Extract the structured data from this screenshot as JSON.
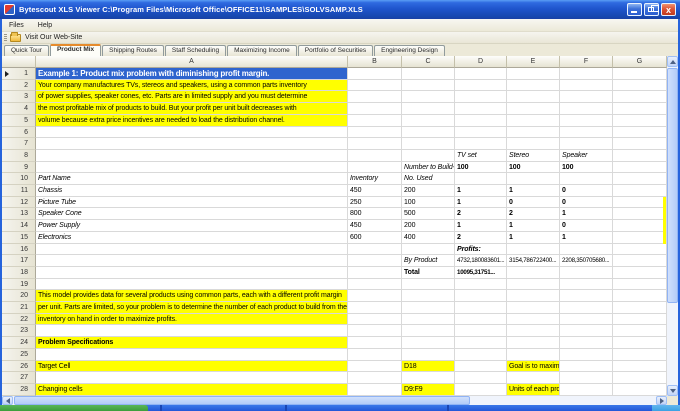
{
  "window": {
    "title": "Bytescout XLS Viewer C:\\Program Files\\Microsoft Office\\OFFICE11\\SAMPLES\\SOLVSAMP.XLS",
    "controls": {
      "minimize": "minimize",
      "restore": "restore",
      "close": "close"
    }
  },
  "menu": {
    "items": [
      "Files",
      "Help"
    ]
  },
  "toolbar": {
    "web_button_label": "Visit Our Web-Site"
  },
  "tabs": {
    "active_index": 1,
    "items": [
      "Quick Tour",
      "Product Mix",
      "Shipping Routes",
      "Staff Scheduling",
      "Maximizing Income",
      "Portfolio of Securities",
      "Engineering Design"
    ]
  },
  "grid": {
    "columns": [
      "A",
      "B",
      "C",
      "D",
      "E",
      "F",
      "G"
    ],
    "rows": [
      {
        "n": 1,
        "cells": [
          {
            "c": "A",
            "t": "Example 1:  Product mix problem with diminishing profit margin.",
            "s": "hdr",
            "bg": "bl"
          }
        ]
      },
      {
        "n": 2,
        "cells": [
          {
            "c": "A",
            "t": "Your company manufactures TVs, stereos and speakers, using a common parts inventory",
            "bg": "y"
          }
        ]
      },
      {
        "n": 3,
        "cells": [
          {
            "c": "A",
            "t": "of power supplies, speaker cones, etc.  Parts are in limited supply and you must determine",
            "bg": "y"
          }
        ]
      },
      {
        "n": 4,
        "cells": [
          {
            "c": "A",
            "t": "the most profitable mix of products to build. But your profit per unit built decreases with",
            "bg": "y"
          }
        ]
      },
      {
        "n": 5,
        "cells": [
          {
            "c": "A",
            "t": "volume because extra price incentives are needed to load the distribution channel.",
            "bg": "y"
          }
        ]
      },
      {
        "n": 6,
        "cells": []
      },
      {
        "n": 7,
        "cells": []
      },
      {
        "n": 8,
        "cells": [
          {
            "c": "D",
            "t": "TV set",
            "s": "i"
          },
          {
            "c": "E",
            "t": "Stereo",
            "s": "i"
          },
          {
            "c": "F",
            "t": "Speaker",
            "s": "i"
          }
        ]
      },
      {
        "n": 9,
        "cells": [
          {
            "c": "C",
            "t": "Number to Build->",
            "s": "i"
          },
          {
            "c": "D",
            "t": "100",
            "s": "b"
          },
          {
            "c": "E",
            "t": "100",
            "s": "b"
          },
          {
            "c": "F",
            "t": "100",
            "s": "b"
          }
        ]
      },
      {
        "n": 10,
        "cells": [
          {
            "c": "A",
            "t": "Part Name",
            "s": "i"
          },
          {
            "c": "B",
            "t": "Inventory",
            "s": "i"
          },
          {
            "c": "C",
            "t": "No. Used",
            "s": "i"
          }
        ]
      },
      {
        "n": 11,
        "cells": [
          {
            "c": "A",
            "t": "Chassis",
            "s": "i"
          },
          {
            "c": "B",
            "t": "450"
          },
          {
            "c": "C",
            "t": "200"
          },
          {
            "c": "D",
            "t": "1",
            "s": "b"
          },
          {
            "c": "E",
            "t": "1",
            "s": "b"
          },
          {
            "c": "F",
            "t": "0",
            "s": "b"
          }
        ]
      },
      {
        "n": 12,
        "cells": [
          {
            "c": "A",
            "t": "Picture Tube",
            "s": "i"
          },
          {
            "c": "B",
            "t": "250"
          },
          {
            "c": "C",
            "t": "100"
          },
          {
            "c": "D",
            "t": "1",
            "s": "b"
          },
          {
            "c": "E",
            "t": "0",
            "s": "b"
          },
          {
            "c": "F",
            "t": "0",
            "s": "b"
          }
        ]
      },
      {
        "n": 13,
        "cells": [
          {
            "c": "A",
            "t": "Speaker Cone",
            "s": "i"
          },
          {
            "c": "B",
            "t": "800"
          },
          {
            "c": "C",
            "t": "500"
          },
          {
            "c": "D",
            "t": "2",
            "s": "b"
          },
          {
            "c": "E",
            "t": "2",
            "s": "b"
          },
          {
            "c": "F",
            "t": "1",
            "s": "b"
          }
        ]
      },
      {
        "n": 14,
        "cells": [
          {
            "c": "A",
            "t": "Power Supply",
            "s": "i"
          },
          {
            "c": "B",
            "t": "450"
          },
          {
            "c": "C",
            "t": "200"
          },
          {
            "c": "D",
            "t": "1",
            "s": "b"
          },
          {
            "c": "E",
            "t": "1",
            "s": "b"
          },
          {
            "c": "F",
            "t": "0",
            "s": "b"
          }
        ]
      },
      {
        "n": 15,
        "cells": [
          {
            "c": "A",
            "t": "Electronics",
            "s": "i"
          },
          {
            "c": "B",
            "t": "600"
          },
          {
            "c": "C",
            "t": "400"
          },
          {
            "c": "D",
            "t": "2",
            "s": "b"
          },
          {
            "c": "E",
            "t": "1",
            "s": "b"
          },
          {
            "c": "F",
            "t": "1",
            "s": "b"
          }
        ]
      },
      {
        "n": 16,
        "cells": [
          {
            "c": "D",
            "t": "Profits:",
            "s": "bi"
          }
        ]
      },
      {
        "n": 17,
        "cells": [
          {
            "c": "C",
            "t": "By Product",
            "s": "i"
          },
          {
            "c": "D",
            "t": "4732,180083601...",
            "s": "sm"
          },
          {
            "c": "E",
            "t": "3154,786722400...",
            "s": "sm"
          },
          {
            "c": "F",
            "t": "2208,350705680...",
            "s": "sm"
          }
        ]
      },
      {
        "n": 18,
        "cells": [
          {
            "c": "C",
            "t": "Total",
            "s": "b"
          },
          {
            "c": "D",
            "t": "10095,31751...",
            "s": "b sm"
          }
        ]
      },
      {
        "n": 19,
        "cells": []
      },
      {
        "n": 20,
        "cells": [
          {
            "c": "A",
            "t": "This model provides data for several products using common parts, each with a different profit margin",
            "bg": "y"
          }
        ]
      },
      {
        "n": 21,
        "cells": [
          {
            "c": "A",
            "t": "per unit.  Parts are limited, so your problem is to determine the number of each product to build from the",
            "bg": "y"
          }
        ]
      },
      {
        "n": 22,
        "cells": [
          {
            "c": "A",
            "t": "inventory on hand in order to maximize profits.",
            "bg": "y"
          }
        ]
      },
      {
        "n": 23,
        "cells": []
      },
      {
        "n": 24,
        "cells": [
          {
            "c": "A",
            "t": "Problem Specifications",
            "s": "b",
            "bg": "y"
          }
        ]
      },
      {
        "n": 25,
        "cells": []
      },
      {
        "n": 26,
        "cells": [
          {
            "c": "A",
            "t": "Target Cell",
            "bg": "y"
          },
          {
            "c": "C",
            "t": "D18",
            "bg": "y"
          },
          {
            "c": "E",
            "t": "Goal is to maximiz...",
            "bg": "y"
          }
        ]
      },
      {
        "n": 27,
        "cells": []
      },
      {
        "n": 28,
        "cells": [
          {
            "c": "A",
            "t": "Changing cells",
            "bg": "y"
          },
          {
            "c": "C",
            "t": "D9:F9",
            "bg": "y"
          },
          {
            "c": "E",
            "t": "Units of each pro...",
            "bg": "y"
          }
        ]
      }
    ],
    "current_row": 1
  },
  "icons": {
    "app": "spreadsheet-app-icon",
    "toolbar_button": "open-folder-icon",
    "window": [
      "minimize-icon",
      "restore-icon",
      "close-icon"
    ]
  },
  "colors": {
    "titlebar_blue": "#2663dc",
    "row1_fill_blue": "#2e64ce",
    "highlight_yellow": "#ffff00",
    "active_tab_accent": "#e68b2c",
    "taskbar_green": "#3c9e3c",
    "taskbar_blue": "#2257d7",
    "tray_blue": "#3ba1e3"
  }
}
